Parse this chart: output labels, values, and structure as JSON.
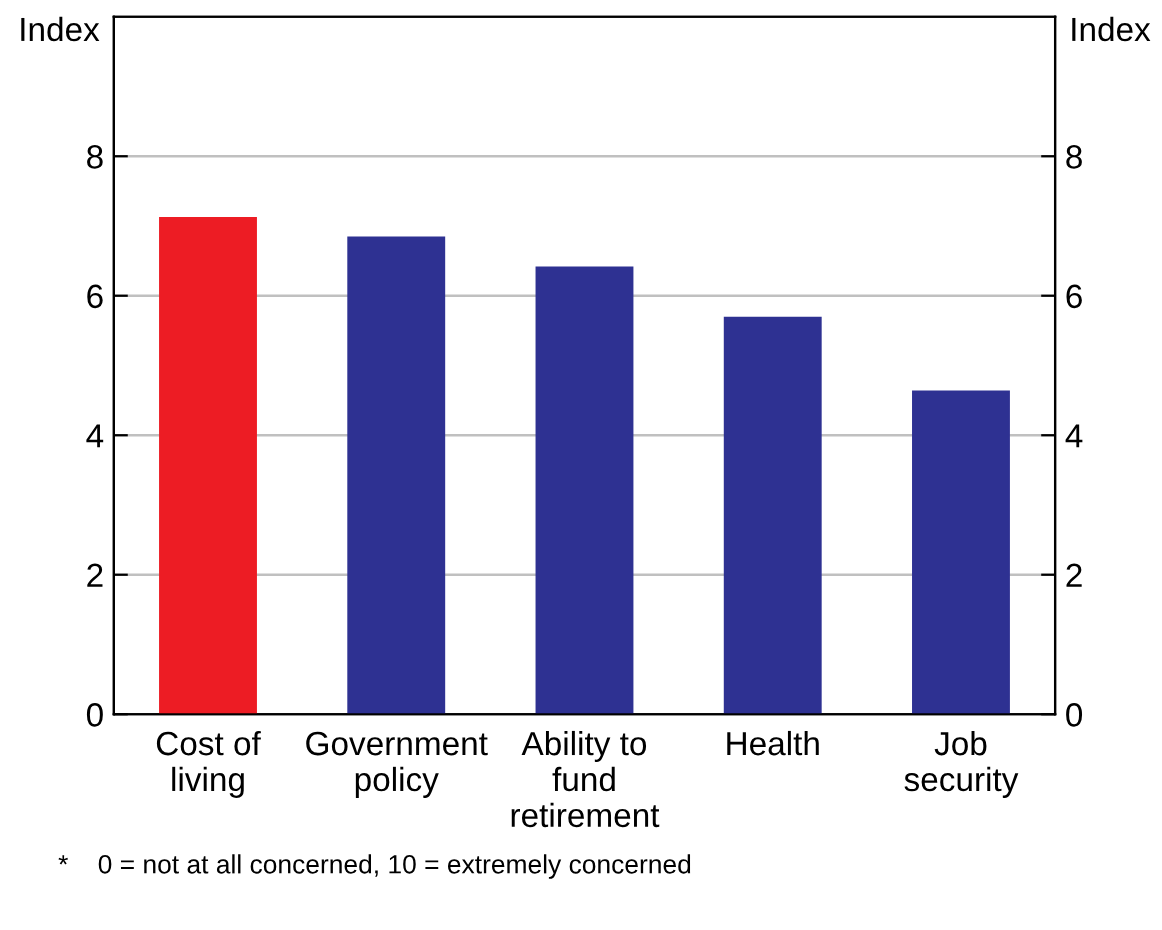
{
  "chart_data": {
    "type": "bar",
    "categories": [
      "Cost of\nliving",
      "Government\npolicy",
      "Ability to\nfund\nretirement",
      "Health",
      "Job\nsecurity"
    ],
    "values": [
      7.13,
      6.85,
      6.42,
      5.7,
      4.64
    ],
    "colors": [
      "#ed1c24",
      "#2e3192",
      "#2e3192",
      "#2e3192",
      "#2e3192"
    ],
    "ylabel": "Index",
    "y2label": "Index",
    "ylim": [
      0,
      10
    ],
    "yticks": [
      0,
      2,
      4,
      6,
      8
    ],
    "y2lim": [
      0,
      10
    ],
    "y2ticks": [
      0,
      2,
      4,
      6,
      8
    ],
    "grid": "y",
    "annotations": [
      "*    0 = not at all concerned, 10 = extremely concerned"
    ]
  }
}
